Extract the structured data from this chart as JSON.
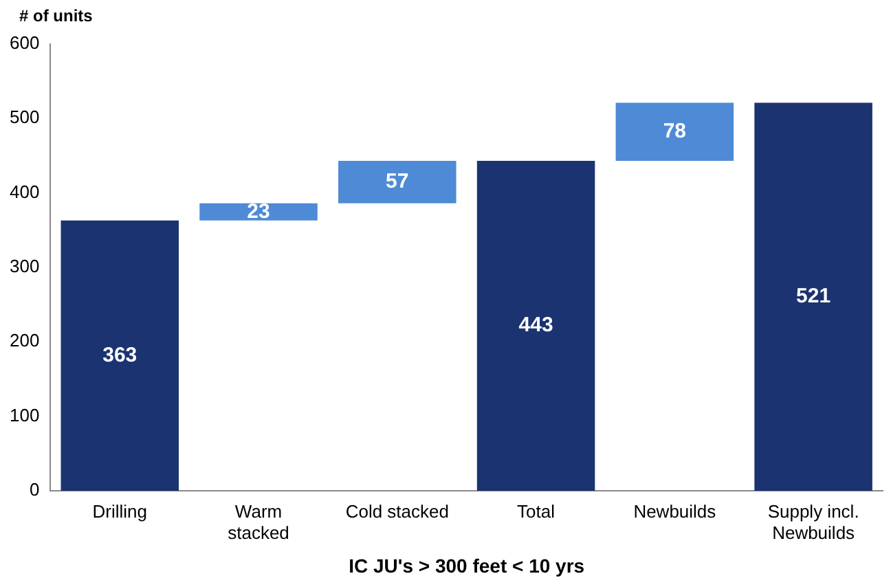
{
  "chart_data": {
    "type": "bar",
    "ylabel": "# of units",
    "xlabel": "IC JU's > 300 feet < 10 yrs",
    "categories": [
      "Drilling",
      "Warm\nstacked",
      "Cold stacked",
      "Total",
      "Newbuilds",
      "Supply incl.\nNewbuilds"
    ],
    "values": [
      363,
      23,
      57,
      443,
      78,
      521
    ],
    "base": [
      0,
      363,
      386,
      0,
      443,
      0
    ],
    "colors": [
      "#1b3370",
      "#4f8ad6",
      "#4f8ad6",
      "#1b3370",
      "#4f8ad6",
      "#1b3370"
    ],
    "ylim": [
      0,
      600
    ],
    "yticks": [
      0,
      100,
      200,
      300,
      400,
      500,
      600
    ],
    "data_labels": true,
    "grid": false,
    "legend": false
  }
}
